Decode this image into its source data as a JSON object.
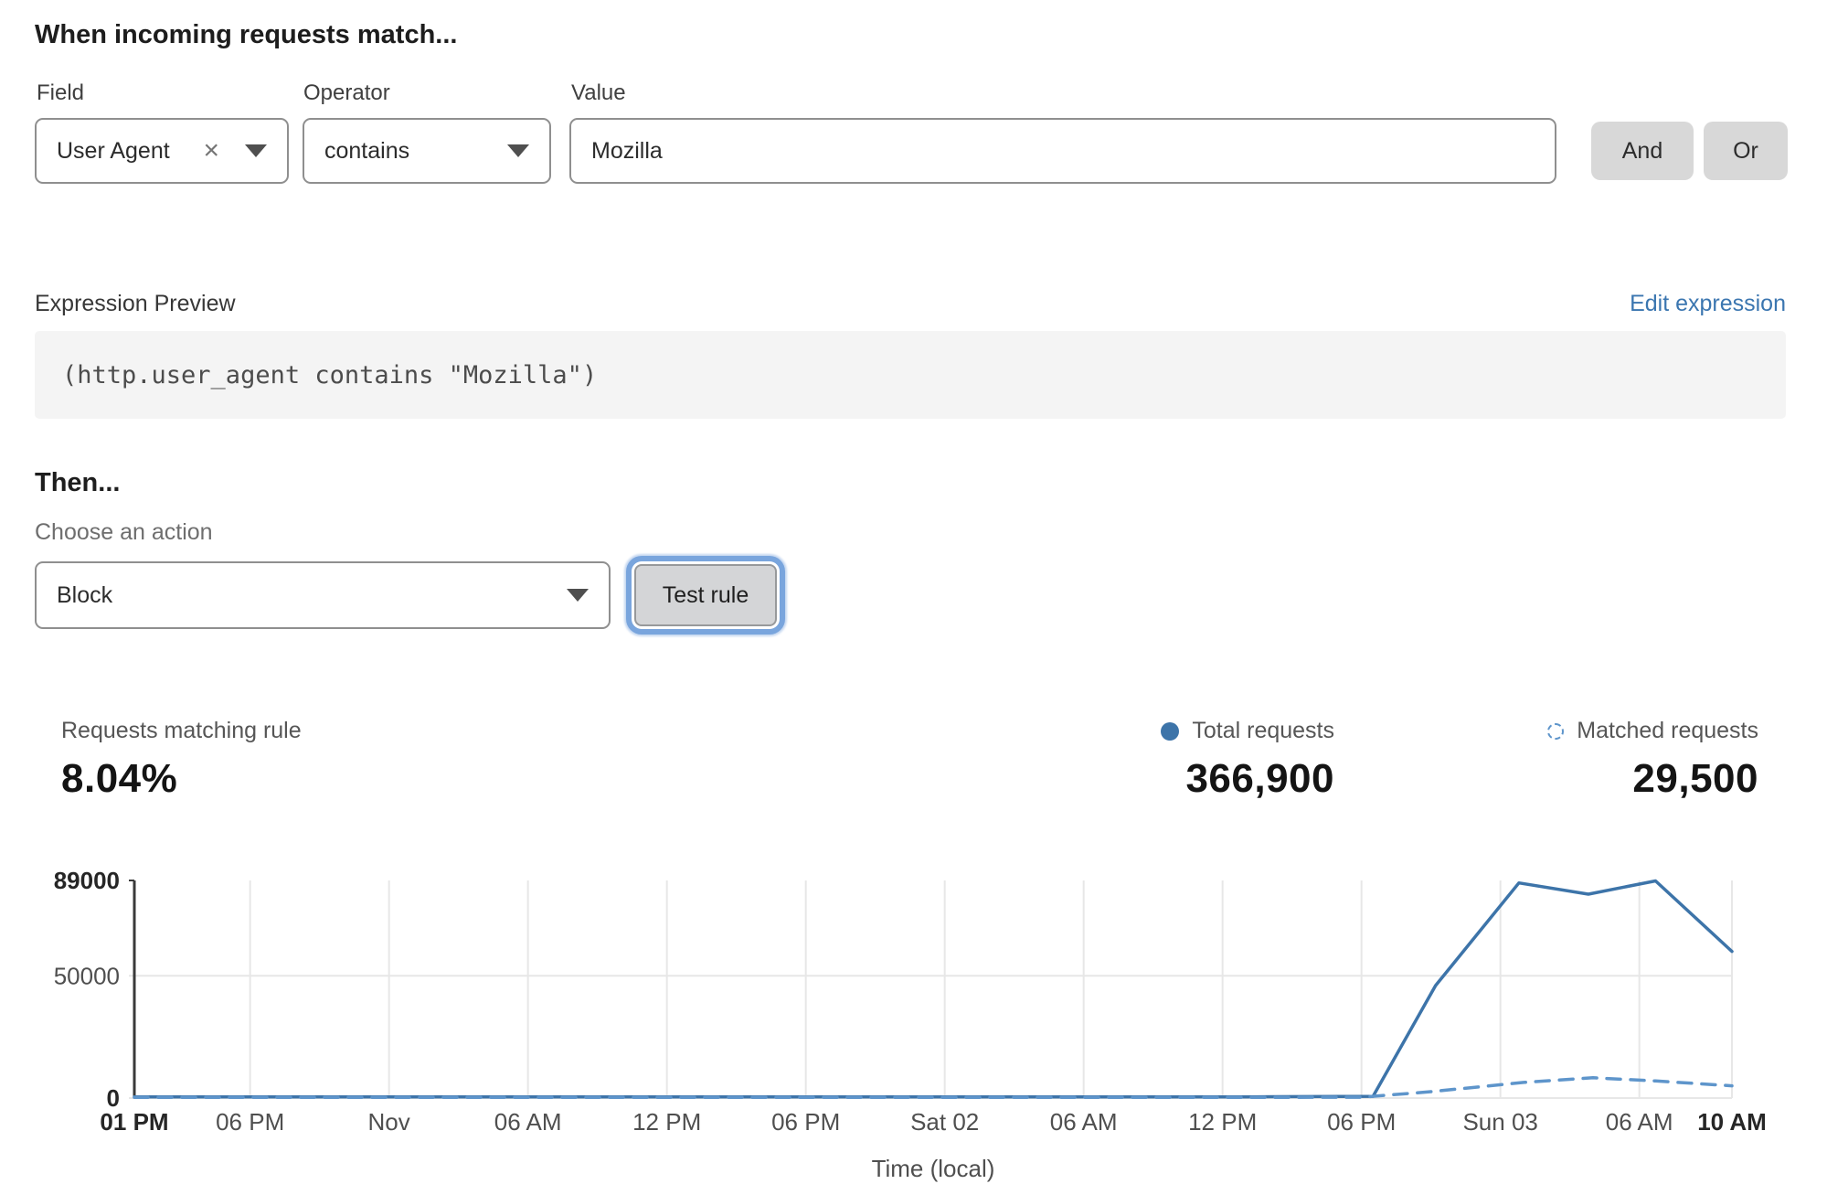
{
  "rule_builder": {
    "title": "When incoming requests match...",
    "field": {
      "label": "Field",
      "value": "User Agent"
    },
    "operator": {
      "label": "Operator",
      "value": "contains"
    },
    "value": {
      "label": "Value",
      "value": "Mozilla"
    },
    "and_label": "And",
    "or_label": "Or"
  },
  "expression": {
    "label": "Expression Preview",
    "edit_link": "Edit expression",
    "code": "(http.user_agent contains \"Mozilla\")"
  },
  "action": {
    "title": "Then...",
    "label": "Choose an action",
    "value": "Block",
    "test_button": "Test rule"
  },
  "stats": {
    "matching": {
      "label": "Requests matching rule",
      "value": "8.04%"
    },
    "total": {
      "label": "Total requests",
      "value": "366,900"
    },
    "matched": {
      "label": "Matched requests",
      "value": "29,500"
    }
  },
  "chart_data": {
    "type": "line",
    "title": "",
    "xlabel": "Time (local)",
    "ylabel": "",
    "ylim": [
      0,
      89000
    ],
    "x_span_hours": 69,
    "grid": "vertical gridlines at each x tick; horizontal gridline at 50000",
    "legend_position": "above chart, right side",
    "colors": {
      "total_line": "#3d74a9",
      "matched_line": "#5e95cb",
      "grid": "#e7e7e7",
      "axis": "#3a3a3a"
    },
    "y_ticks": [
      {
        "value": 0,
        "label": "0",
        "bold": true
      },
      {
        "value": 50000,
        "label": "50000",
        "bold": false
      },
      {
        "value": 89000,
        "label": "89000",
        "bold": true
      }
    ],
    "x_ticks": [
      {
        "hour": 0,
        "label": "01 PM",
        "bold": true
      },
      {
        "hour": 5,
        "label": "06 PM",
        "bold": false
      },
      {
        "hour": 11,
        "label": "Nov",
        "bold": false
      },
      {
        "hour": 17,
        "label": "06 AM",
        "bold": false
      },
      {
        "hour": 23,
        "label": "12 PM",
        "bold": false
      },
      {
        "hour": 29,
        "label": "06 PM",
        "bold": false
      },
      {
        "hour": 35,
        "label": "Sat 02",
        "bold": false
      },
      {
        "hour": 41,
        "label": "06 AM",
        "bold": false
      },
      {
        "hour": 47,
        "label": "12 PM",
        "bold": false
      },
      {
        "hour": 53,
        "label": "06 PM",
        "bold": false
      },
      {
        "hour": 59,
        "label": "Sun 03",
        "bold": false
      },
      {
        "hour": 65,
        "label": "06 AM",
        "bold": false
      },
      {
        "hour": 69,
        "label": "10 AM",
        "bold": true
      }
    ],
    "series": [
      {
        "name": "Total requests",
        "style": "solid",
        "color": "#3d74a9",
        "points": [
          [
            0,
            500
          ],
          [
            6,
            500
          ],
          [
            12,
            500
          ],
          [
            18,
            500
          ],
          [
            24,
            500
          ],
          [
            30,
            500
          ],
          [
            36,
            500
          ],
          [
            42,
            500
          ],
          [
            48,
            500
          ],
          [
            53.5,
            700
          ],
          [
            56.2,
            46000
          ],
          [
            59.8,
            88000
          ],
          [
            62.8,
            83400
          ],
          [
            65.7,
            88800
          ],
          [
            69,
            60000
          ]
        ]
      },
      {
        "name": "Matched requests",
        "style": "dashed",
        "color": "#5e95cb",
        "points": [
          [
            0,
            250
          ],
          [
            6,
            250
          ],
          [
            12,
            250
          ],
          [
            18,
            250
          ],
          [
            24,
            250
          ],
          [
            30,
            250
          ],
          [
            36,
            250
          ],
          [
            42,
            250
          ],
          [
            48,
            250
          ],
          [
            53,
            350
          ],
          [
            56,
            2600
          ],
          [
            60,
            6400
          ],
          [
            63,
            8300
          ],
          [
            65.7,
            7000
          ],
          [
            69,
            5000
          ]
        ]
      }
    ]
  }
}
